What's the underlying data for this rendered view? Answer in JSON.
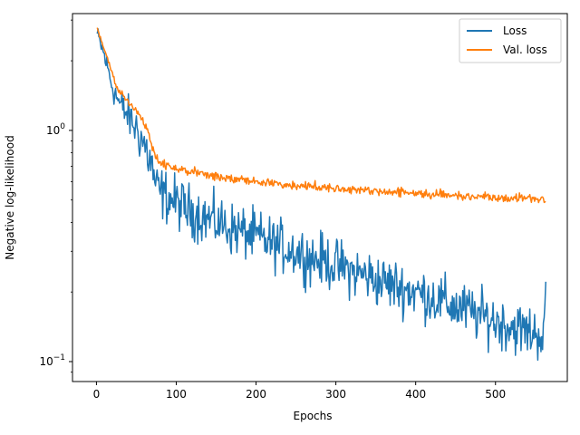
{
  "chart_data": {
    "type": "line",
    "title": "",
    "xlabel": "Epochs",
    "ylabel": "Negative log-likelihood",
    "xlim": [
      -30,
      590
    ],
    "ylim": [
      0.082,
      3.2
    ],
    "yscale": "log",
    "grid": false,
    "legend_position": "top-right",
    "x_ticks": [
      {
        "value": 0,
        "label": "0"
      },
      {
        "value": 100,
        "label": "100"
      },
      {
        "value": 200,
        "label": "200"
      },
      {
        "value": 300,
        "label": "300"
      },
      {
        "value": 400,
        "label": "400"
      },
      {
        "value": 500,
        "label": "500"
      }
    ],
    "y_ticks": [
      {
        "value": 0.1,
        "base": "10",
        "exp": "−1"
      },
      {
        "value": 1,
        "base": "10",
        "exp": "0"
      }
    ],
    "series": [
      {
        "name": "Loss",
        "color": "#1f77b4",
        "x": [
          1,
          10,
          20,
          30,
          40,
          50,
          60,
          70,
          75,
          80,
          90,
          100,
          110,
          120,
          130,
          140,
          150,
          160,
          170,
          180,
          190,
          200,
          210,
          220,
          230,
          240,
          250,
          260,
          270,
          280,
          290,
          300,
          310,
          320,
          330,
          340,
          350,
          360,
          370,
          380,
          390,
          400,
          410,
          420,
          430,
          440,
          450,
          460,
          470,
          480,
          490,
          500,
          510,
          520,
          530,
          540,
          550,
          560,
          563
        ],
        "y": [
          2.6,
          2.1,
          1.55,
          1.28,
          1.15,
          1.02,
          0.87,
          0.69,
          0.56,
          0.54,
          0.51,
          0.49,
          0.46,
          0.445,
          0.43,
          0.415,
          0.4,
          0.39,
          0.375,
          0.365,
          0.355,
          0.345,
          0.335,
          0.325,
          0.315,
          0.31,
          0.3,
          0.29,
          0.28,
          0.275,
          0.27,
          0.26,
          0.255,
          0.245,
          0.24,
          0.235,
          0.225,
          0.22,
          0.215,
          0.21,
          0.205,
          0.2,
          0.195,
          0.19,
          0.183,
          0.178,
          0.172,
          0.168,
          0.163,
          0.158,
          0.154,
          0.15,
          0.146,
          0.142,
          0.138,
          0.135,
          0.133,
          0.131,
          0.175
        ],
        "noise": 0.13
      },
      {
        "name": "Val. loss",
        "color": "#ff7f0e",
        "x": [
          1,
          10,
          20,
          25,
          30,
          40,
          50,
          60,
          65,
          70,
          75,
          80,
          90,
          100,
          120,
          140,
          160,
          180,
          200,
          220,
          240,
          260,
          280,
          300,
          320,
          340,
          360,
          380,
          400,
          420,
          440,
          460,
          480,
          500,
          520,
          540,
          560,
          563
        ],
        "y": [
          2.75,
          2.25,
          1.75,
          1.55,
          1.45,
          1.33,
          1.23,
          1.08,
          0.97,
          0.85,
          0.77,
          0.73,
          0.7,
          0.68,
          0.66,
          0.64,
          0.625,
          0.61,
          0.6,
          0.59,
          0.58,
          0.575,
          0.57,
          0.565,
          0.555,
          0.55,
          0.545,
          0.54,
          0.535,
          0.53,
          0.525,
          0.52,
          0.52,
          0.515,
          0.51,
          0.51,
          0.505,
          0.5
        ],
        "noise": 0.022
      }
    ]
  }
}
